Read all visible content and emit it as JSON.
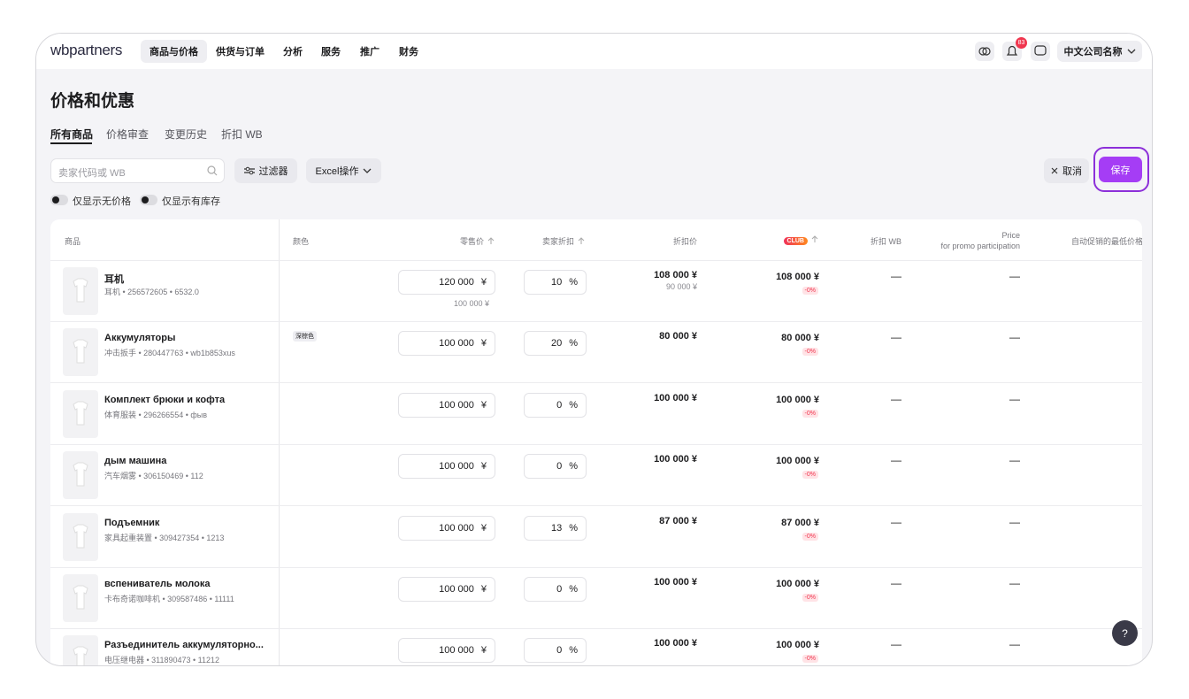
{
  "nav": {
    "logo": "wbpartners",
    "items": [
      "商品与价格",
      "供货与订单",
      "分析",
      "服务",
      "推广",
      "财务"
    ],
    "badge": "83",
    "company": "中文公司名称"
  },
  "page": {
    "title": "价格和优惠",
    "tabs": [
      "所有商品",
      "价格审查",
      "变更历史",
      "折扣 WB"
    ],
    "search_placeholder": "卖家代码或 WB",
    "filter": "过滤器",
    "excel": "Excel操作",
    "cancel": "取消",
    "save": "保存",
    "toggles": [
      "仅显示无价格",
      "仅显示有库存"
    ],
    "help": "?"
  },
  "table": {
    "columns": [
      "商品",
      "颜色",
      "零售价",
      "卖家折扣",
      "折扣价",
      "CLUB",
      "折扣 WB",
      [
        "Price",
        "for promo participation"
      ],
      "自动促销的最低价格"
    ],
    "units": {
      "currency": "¥",
      "percent": "%"
    },
    "rows": [
      {
        "name": "耳机",
        "sub": "耳机 • 256572605 • 6532.0",
        "retail": "120 000",
        "retail_sub": "100 000 ¥",
        "discount": "10",
        "price": "108 000 ¥",
        "price_sub": "90 000 ¥",
        "club": "108 000 ¥",
        "club_badge": "-0%",
        "wb": "—",
        "promo": "—"
      },
      {
        "name": "Аккумуляторы",
        "sub": "冲击扳手 • 280447763 • wb1b853xus",
        "color": "深棕色",
        "retail": "100 000",
        "discount": "20",
        "price": "80 000 ¥",
        "club": "80 000 ¥",
        "club_badge": "-0%",
        "wb": "—",
        "promo": "—"
      },
      {
        "name": "Комплект брюки и кофта",
        "sub": "体育服装 • 296266554 • фыв",
        "retail": "100 000",
        "discount": "0",
        "price": "100 000 ¥",
        "club": "100 000 ¥",
        "club_badge": "-0%",
        "wb": "—",
        "promo": "—"
      },
      {
        "name": "дым машина",
        "sub": "汽车烟雾 • 306150469 • 112",
        "retail": "100 000",
        "discount": "0",
        "price": "100 000 ¥",
        "club": "100 000 ¥",
        "club_badge": "-0%",
        "wb": "—",
        "promo": "—"
      },
      {
        "name": "Подъемник",
        "sub": "家具起重装置 • 309427354 • 1213",
        "retail": "100 000",
        "discount": "13",
        "price": "87 000 ¥",
        "club": "87 000 ¥",
        "club_badge": "-0%",
        "wb": "—",
        "promo": "—"
      },
      {
        "name": "вспениватель молока",
        "sub": "卡布奇诺咖啡机 • 309587486 • 11111",
        "retail": "100 000",
        "discount": "0",
        "price": "100 000 ¥",
        "club": "100 000 ¥",
        "club_badge": "-0%",
        "wb": "—",
        "promo": "—"
      },
      {
        "name": "Разъединитель аккумуляторно...",
        "sub": "电压继电器 • 311890473 • 11212",
        "retail": "100 000",
        "discount": "0",
        "price": "100 000 ¥",
        "club": "100 000 ¥",
        "club_badge": "-0%",
        "wb": "—",
        "promo": "—"
      }
    ]
  }
}
